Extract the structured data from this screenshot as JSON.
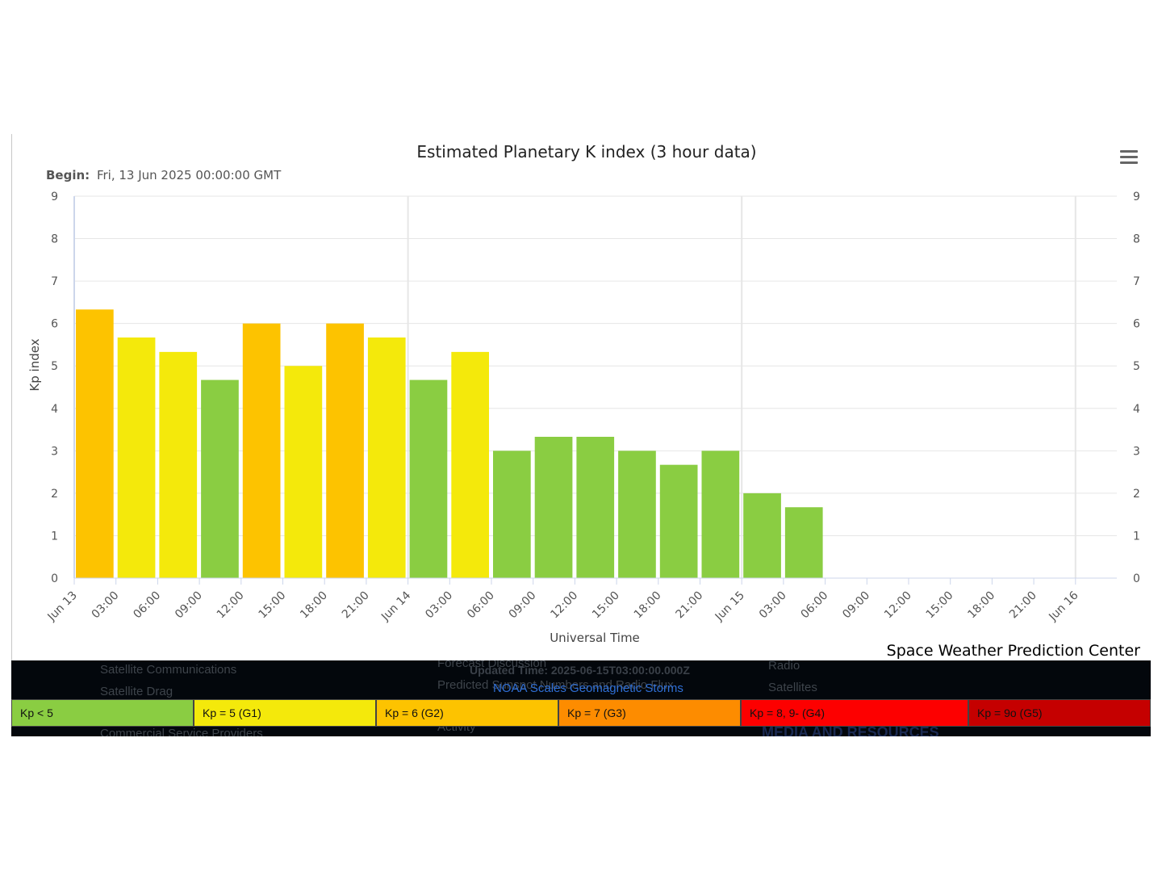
{
  "chart_data": {
    "type": "bar",
    "title": "Estimated Planetary K index (3 hour data)",
    "subtitle_label": "Begin:",
    "subtitle_value": "Fri, 13 Jun 2025 00:00:00 GMT",
    "xlabel": "Universal Time",
    "ylabel": "Kp index",
    "credit": "Space Weather Prediction Center",
    "ylim": [
      0,
      9
    ],
    "y_ticks": [
      "0",
      "1",
      "2",
      "3",
      "4",
      "5",
      "6",
      "7",
      "8",
      "9"
    ],
    "x_ticks": [
      "Jun 13",
      "03:00",
      "06:00",
      "09:00",
      "12:00",
      "15:00",
      "18:00",
      "21:00",
      "Jun 14",
      "03:00",
      "06:00",
      "09:00",
      "12:00",
      "15:00",
      "18:00",
      "21:00",
      "Jun 15",
      "03:00",
      "06:00",
      "09:00",
      "12:00",
      "15:00",
      "18:00",
      "21:00",
      "Jun 16"
    ],
    "values": [
      6.33,
      5.67,
      5.33,
      4.67,
      6.0,
      5.0,
      6.0,
      5.67,
      4.67,
      5.33,
      3.0,
      3.33,
      3.33,
      3.0,
      2.67,
      3.0,
      2.0,
      1.67
    ],
    "grid": true,
    "colors": {
      "below_5": "#8acd42",
      "g1": "#f4e90b",
      "g2": "#fdc300",
      "g3": "#fd8c00",
      "g4": "#fd0000",
      "g5": "#c50000"
    }
  },
  "footer": {
    "updated_text": "Updated Time: 2025-06-15T03:00:00.000Z",
    "scales_link": "NOAA Scales Geomagnetic Storms",
    "legend": [
      {
        "label": "Kp < 5",
        "color": "#8acd42"
      },
      {
        "label": "Kp = 5 (G1)",
        "color": "#f4e90b"
      },
      {
        "label": "Kp = 6 (G2)",
        "color": "#fdc300"
      },
      {
        "label": "Kp = 7 (G3)",
        "color": "#fd8c00"
      },
      {
        "label": "Kp = 8, 9- (G4)",
        "color": "#fd0000"
      },
      {
        "label": "Kp = 9o (G5)",
        "color": "#c50000"
      }
    ],
    "ghost_text": {
      "satcom": "Satellite Communications",
      "satdrag": "Satellite Drag",
      "commercial": "Commercial Service Providers",
      "forecast": "Forecast Discussion",
      "predicted": "Predicted Sunspot Numbers and Radio Flux",
      "activity": "Activity",
      "radio": "Radio",
      "satellites": "Satellites",
      "media": "MEDIA AND RESOURCES"
    }
  }
}
